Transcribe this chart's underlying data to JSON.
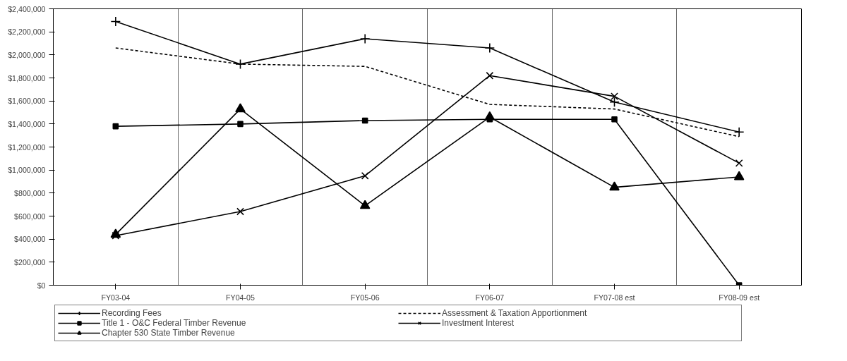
{
  "chart_data": {
    "type": "line",
    "categories": [
      "FY03-04",
      "FY04-05",
      "FY05-06",
      "FY06-07",
      "FY07-08 est",
      "FY08-09 est"
    ],
    "series": [
      {
        "name": "Recording Fees",
        "color": "#000000",
        "marker": "cross",
        "line_style": "solid",
        "values": [
          2290000,
          1920000,
          2140000,
          2060000,
          1590000,
          1330000
        ]
      },
      {
        "name": "Assessment & Taxation Apportionment",
        "color": "#000000",
        "marker": "none",
        "line_style": "dashed",
        "values": [
          2060000,
          1920000,
          1900000,
          1570000,
          1530000,
          1290000
        ]
      },
      {
        "name": "Title 1 - O&C Federal Timber Revenue",
        "color": "#000000",
        "marker": "square",
        "line_style": "solid",
        "values": [
          1380000,
          1400000,
          1430000,
          1440000,
          1440000,
          0
        ]
      },
      {
        "name": "Investment Interest",
        "color": "#000000",
        "marker": "x",
        "line_style": "solid",
        "values": [
          430000,
          640000,
          950000,
          1820000,
          1640000,
          1060000
        ]
      },
      {
        "name": "Chapter 530 State Timber Revenue",
        "color": "#000000",
        "marker": "triangle",
        "line_style": "solid",
        "values": [
          440000,
          1530000,
          690000,
          1460000,
          850000,
          940000
        ]
      }
    ],
    "ylim": [
      0,
      2400000
    ],
    "yticks": [
      {
        "value": 0,
        "label": "$0"
      },
      {
        "value": 200000,
        "label": "$200,000"
      },
      {
        "value": 400000,
        "label": "$400,000"
      },
      {
        "value": 600000,
        "label": "$600,000"
      },
      {
        "value": 800000,
        "label": "$800,000"
      },
      {
        "value": 1000000,
        "label": "$1,000,000"
      },
      {
        "value": 1200000,
        "label": "$1,200,000"
      },
      {
        "value": 1400000,
        "label": "$1,400,000"
      },
      {
        "value": 1600000,
        "label": "$1,600,000"
      },
      {
        "value": 1800000,
        "label": "$1,800,000"
      },
      {
        "value": 2000000,
        "label": "$2,000,000"
      },
      {
        "value": 2200000,
        "label": "$2,200,000"
      },
      {
        "value": 2400000,
        "label": "$2,400,000"
      }
    ],
    "grid": "x",
    "legend": "bottom"
  }
}
